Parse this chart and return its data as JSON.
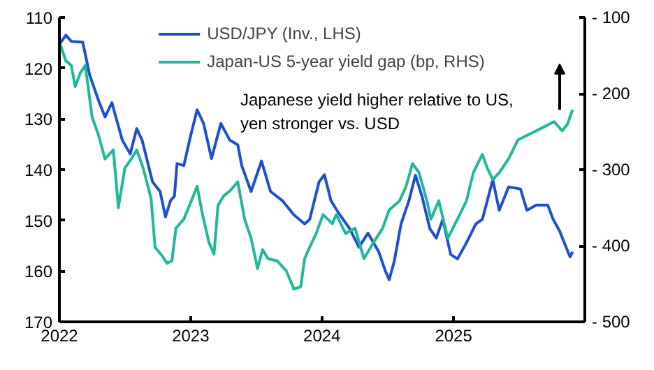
{
  "chart_data": {
    "type": "line",
    "xlim": [
      "2022-01-01",
      "2026-01-01"
    ],
    "xticks": [
      {
        "value": "2022-01-01",
        "label": "2022"
      },
      {
        "value": "2023-01-01",
        "label": "2023"
      },
      {
        "value": "2024-01-01",
        "label": "2024"
      },
      {
        "value": "2025-01-01",
        "label": "2025"
      }
    ],
    "ylim": [
      170,
      110
    ],
    "yticks": [
      110,
      120,
      130,
      140,
      150,
      160,
      170
    ],
    "y2lim": [
      -500,
      -100
    ],
    "y2ticks": [
      -100,
      -200,
      -300,
      -400,
      -500
    ],
    "grid": false,
    "legend": "top",
    "marker": "none",
    "line_style": "solid",
    "annotations": [
      "Japanese yield higher relative to US,\nyen stronger vs. USD"
    ],
    "series": [
      {
        "name": "USD/JPY (Inv., LHS)",
        "color": "#1f4fd1",
        "x": [
          "2022-01-01",
          "2022-01-19",
          "2022-02-03",
          "2022-03-07",
          "2022-03-26",
          "2022-04-20",
          "2022-05-08",
          "2022-05-27",
          "2022-06-14",
          "2022-06-25",
          "2022-07-17",
          "2022-08-04",
          "2022-08-19",
          "2022-09-17",
          "2022-10-08",
          "2022-10-23",
          "2022-11-06",
          "2022-11-17",
          "2022-11-24",
          "2022-12-13",
          "2023-01-01",
          "2023-01-19",
          "2023-02-06",
          "2023-02-28",
          "2023-03-26",
          "2023-04-20",
          "2023-05-12",
          "2023-05-23",
          "2023-06-18",
          "2023-07-17",
          "2023-08-11",
          "2023-09-13",
          "2023-10-15",
          "2023-11-14",
          "2023-11-28",
          "2023-12-24",
          "2024-01-08",
          "2024-01-26",
          "2024-02-14",
          "2024-03-18",
          "2024-04-13",
          "2024-05-08",
          "2024-06-07",
          "2024-06-25",
          "2024-07-06",
          "2024-07-20",
          "2024-08-08",
          "2024-08-30",
          "2024-09-17",
          "2024-10-05",
          "2024-10-27",
          "2024-11-14",
          "2024-12-02",
          "2024-12-24",
          "2025-01-12",
          "2025-02-06",
          "2025-03-04",
          "2025-03-22",
          "2025-04-05",
          "2025-04-20",
          "2025-05-08",
          "2025-06-03",
          "2025-07-06",
          "2025-07-24",
          "2025-08-19",
          "2025-09-20",
          "2025-10-05",
          "2025-10-23",
          "2025-11-10",
          "2025-11-21",
          "2025-11-28"
        ],
        "values": [
          115.3,
          113.5,
          114.7,
          114.9,
          121.3,
          126.4,
          129.6,
          126.8,
          131.4,
          134.2,
          136.9,
          131.9,
          134.2,
          142.4,
          144.3,
          149.3,
          146.1,
          145.2,
          138.8,
          139.2,
          133.3,
          128.2,
          130.9,
          137.8,
          130.9,
          134.2,
          135.1,
          139.2,
          144.3,
          138.3,
          144.3,
          146.1,
          148.9,
          150.7,
          149.8,
          142.4,
          141.0,
          146.1,
          148.3,
          151.6,
          155.3,
          152.5,
          156.2,
          159.9,
          161.7,
          158.1,
          150.7,
          146.1,
          141.1,
          145.2,
          151.6,
          153.5,
          149.8,
          156.7,
          157.6,
          154.4,
          150.7,
          149.8,
          146.1,
          142.0,
          148.0,
          143.4,
          143.8,
          148.0,
          147.0,
          147.0,
          149.8,
          152.1,
          155.3,
          157.2,
          156.2
        ]
      },
      {
        "name": "Japan-US 5-year yield gap (bp, RHS)",
        "color": "#1fb89a",
        "axis": "y2",
        "x": [
          "2022-01-01",
          "2022-01-19",
          "2022-02-03",
          "2022-02-14",
          "2022-02-28",
          "2022-03-14",
          "2022-04-02",
          "2022-04-20",
          "2022-05-08",
          "2022-05-31",
          "2022-06-14",
          "2022-07-02",
          "2022-07-20",
          "2022-08-04",
          "2022-08-22",
          "2022-09-13",
          "2022-09-24",
          "2022-10-15",
          "2022-10-27",
          "2022-11-10",
          "2022-11-21",
          "2022-12-13",
          "2023-01-08",
          "2023-01-19",
          "2023-02-03",
          "2023-02-21",
          "2023-03-07",
          "2023-03-18",
          "2023-04-02",
          "2023-04-20",
          "2023-05-12",
          "2023-05-31",
          "2023-06-18",
          "2023-07-06",
          "2023-07-20",
          "2023-08-04",
          "2023-08-30",
          "2023-09-24",
          "2023-10-15",
          "2023-11-03",
          "2023-11-14",
          "2023-11-28",
          "2023-12-16",
          "2024-01-04",
          "2024-01-30",
          "2024-02-10",
          "2024-03-07",
          "2024-04-02",
          "2024-04-27",
          "2024-05-23",
          "2024-06-18",
          "2024-07-06",
          "2024-08-04",
          "2024-08-22",
          "2024-09-09",
          "2024-09-27",
          "2024-10-19",
          "2024-10-30",
          "2024-11-21",
          "2024-12-16",
          "2025-01-12",
          "2025-02-06",
          "2025-02-25",
          "2025-03-22",
          "2025-04-05",
          "2025-04-20",
          "2025-05-08",
          "2025-06-03",
          "2025-06-29",
          "2025-07-24",
          "2025-08-19",
          "2025-09-13",
          "2025-10-08",
          "2025-10-30",
          "2025-11-14",
          "2025-11-28"
        ],
        "values": [
          -132,
          -157,
          -163,
          -191,
          -173,
          -163,
          -231,
          -255,
          -286,
          -274,
          -350,
          -298,
          -286,
          -274,
          -298,
          -338,
          -402,
          -414,
          -423,
          -420,
          -377,
          -365,
          -335,
          -322,
          -359,
          -396,
          -411,
          -347,
          -335,
          -328,
          -316,
          -365,
          -390,
          -430,
          -405,
          -417,
          -420,
          -433,
          -457,
          -454,
          -417,
          -402,
          -384,
          -359,
          -371,
          -359,
          -384,
          -377,
          -417,
          -396,
          -377,
          -353,
          -341,
          -322,
          -292,
          -304,
          -341,
          -365,
          -341,
          -390,
          -365,
          -341,
          -304,
          -280,
          -298,
          -313,
          -304,
          -286,
          -261,
          -255,
          -249,
          -243,
          -237,
          -249,
          -240,
          -221
        ]
      }
    ]
  }
}
